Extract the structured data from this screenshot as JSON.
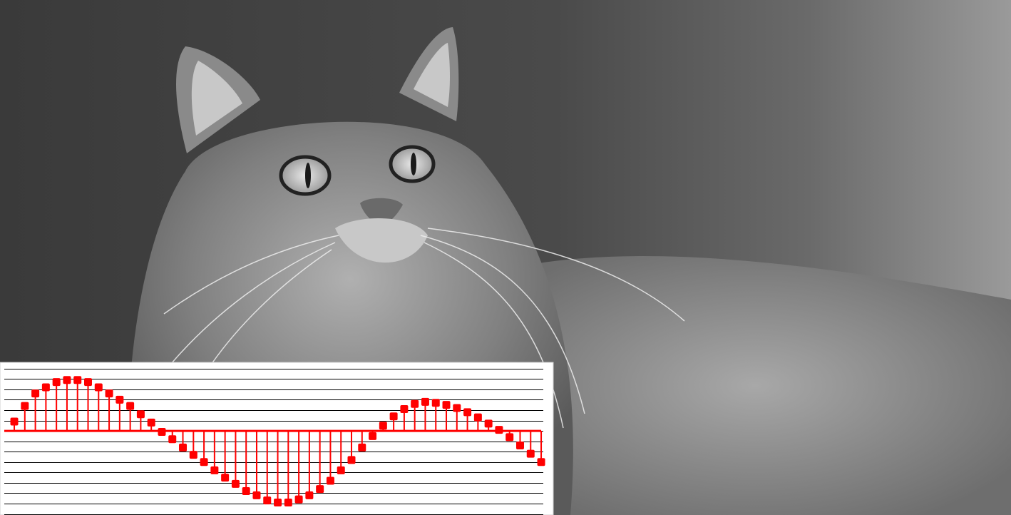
{
  "chart_data": {
    "type": "stem",
    "color": "#ff0000",
    "x": [
      0,
      1,
      2,
      3,
      4,
      5,
      6,
      7,
      8,
      9,
      10,
      11,
      12,
      13,
      14,
      15,
      16,
      17,
      18,
      19,
      20,
      21,
      22,
      23,
      24,
      25,
      26,
      27,
      28,
      29,
      30,
      31,
      32,
      33,
      34,
      35,
      36,
      37,
      38,
      39,
      40,
      41,
      42,
      43,
      44,
      45,
      46,
      47,
      48,
      49,
      50
    ],
    "values": [
      0.9,
      2.4,
      3.6,
      4.2,
      4.7,
      4.9,
      4.9,
      4.7,
      4.2,
      3.6,
      3.0,
      2.4,
      1.6,
      0.8,
      -0.1,
      -0.8,
      -1.6,
      -2.3,
      -3.0,
      -3.8,
      -4.5,
      -5.1,
      -5.8,
      -6.2,
      -6.7,
      -6.9,
      -6.9,
      -6.6,
      -6.2,
      -5.6,
      -4.8,
      -3.8,
      -2.8,
      -1.6,
      -0.5,
      0.5,
      1.4,
      2.1,
      2.6,
      2.8,
      2.7,
      2.5,
      2.2,
      1.8,
      1.3,
      0.7,
      0.1,
      -0.6,
      -1.4,
      -2.2,
      -3.0
    ],
    "xlim": [
      -0.95,
      50.2
    ],
    "ylim": [
      -8.1,
      6.6
    ],
    "yticks": [
      -8,
      -7,
      -6,
      -5,
      -4,
      -3,
      -2,
      -1,
      0,
      1,
      2,
      3,
      4,
      5,
      6
    ],
    "grid": true
  }
}
